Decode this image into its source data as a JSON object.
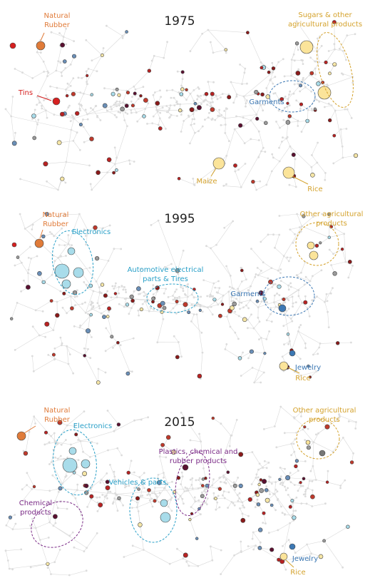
{
  "panels": [
    {
      "year": "1975",
      "labels": [
        {
          "lines": [
            "Natural",
            "Rubber"
          ]
        },
        {
          "lines": [
            "Tins"
          ]
        },
        {
          "lines": [
            "Sugars & other",
            "agricultural products"
          ]
        },
        {
          "lines": [
            "Garments"
          ]
        },
        {
          "lines": [
            "Maize"
          ]
        },
        {
          "lines": [
            "Rice"
          ]
        }
      ]
    },
    {
      "year": "1995",
      "labels": [
        {
          "lines": [
            "Natural",
            "Rubber"
          ]
        },
        {
          "lines": [
            "Electronics"
          ]
        },
        {
          "lines": [
            "Automotive electrical",
            "parts & Tires"
          ]
        },
        {
          "lines": [
            "Garments"
          ]
        },
        {
          "lines": [
            "Other agricultural",
            "products"
          ]
        },
        {
          "lines": [
            "Jewelry"
          ]
        },
        {
          "lines": [
            "Rice"
          ]
        }
      ]
    },
    {
      "year": "2015",
      "labels": [
        {
          "lines": [
            "Natural",
            "Rubber"
          ]
        },
        {
          "lines": [
            "Electronics"
          ]
        },
        {
          "lines": [
            "Other agricultural",
            "products"
          ]
        },
        {
          "lines": [
            "Plastics, chemical and",
            "rubber products"
          ]
        },
        {
          "lines": [
            "Vehicles & parts"
          ]
        },
        {
          "lines": [
            "Chemical",
            "products"
          ]
        },
        {
          "lines": [
            "Jewelry"
          ]
        },
        {
          "lines": [
            "Rice"
          ]
        }
      ]
    }
  ]
}
